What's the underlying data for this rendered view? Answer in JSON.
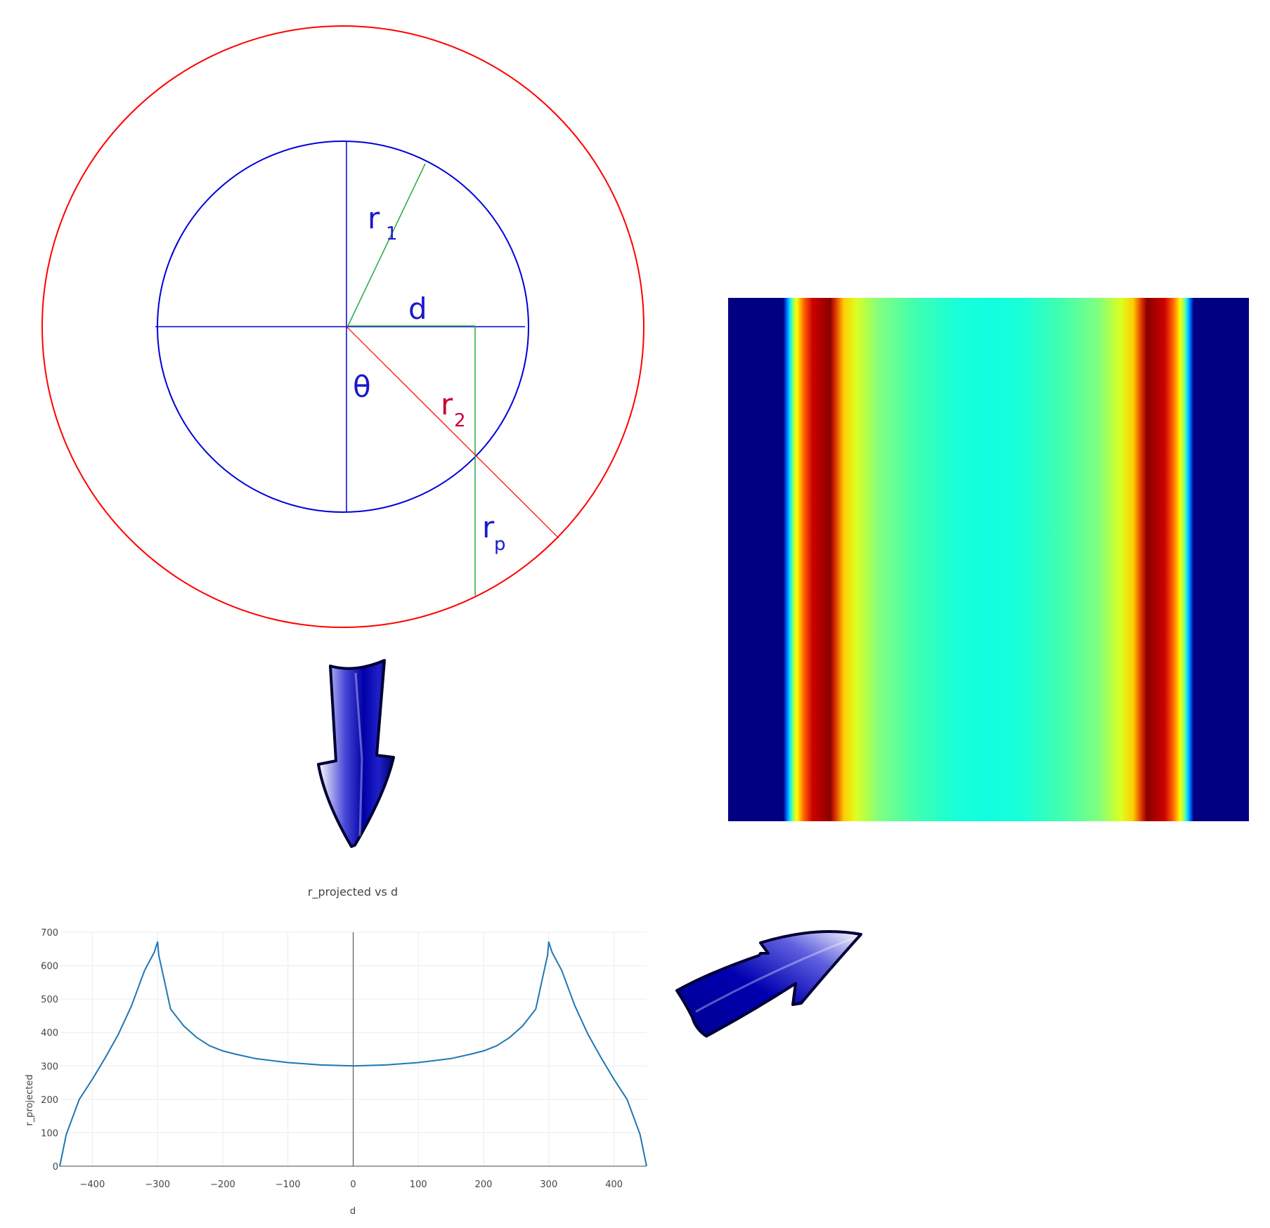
{
  "diagram": {
    "labels": {
      "r1_main": "r",
      "r1_sub": "1",
      "d": "d",
      "theta": "θ",
      "r2_main": "r",
      "r2_sub": "2",
      "rp_main": "r",
      "rp_sub": "p"
    },
    "colors": {
      "outer_circle": "#ff0000",
      "inner_circle": "#0000dd",
      "helper_lines": "#22aa44",
      "r2_line": "#ff0000",
      "label_blue": "#1a1acc",
      "label_red": "#cc0033"
    }
  },
  "colormap": {
    "name": "jet",
    "background": "#000080"
  },
  "arrows": {
    "down_arrow": "arrow-down-icon",
    "up_right_arrow": "arrow-up-right-icon",
    "color": "#1010b0"
  },
  "chart_data": {
    "type": "line",
    "title": "r_projected vs d",
    "xlabel": "d",
    "ylabel": "r_projected",
    "xlim": [
      -450,
      450
    ],
    "ylim": [
      0,
      700
    ],
    "xticks": [
      -400,
      -300,
      -200,
      -100,
      0,
      100,
      200,
      300,
      400
    ],
    "yticks": [
      0,
      100,
      200,
      300,
      400,
      500,
      600,
      700
    ],
    "grid": true,
    "series_color": "#1f77b4",
    "inner_radius": 300,
    "outer_radius": 450,
    "series": [
      {
        "x": [
          -450,
          -440,
          -420,
          -400,
          -380,
          -360,
          -340,
          -320,
          -305,
          -300,
          -298,
          -290,
          -280,
          -260,
          -240,
          -220,
          -200,
          -180,
          -150,
          -100,
          -50,
          0,
          50,
          100,
          150,
          180,
          200,
          220,
          240,
          260,
          280,
          290,
          298,
          300,
          305,
          320,
          340,
          360,
          380,
          400,
          420,
          440,
          450
        ],
        "y": [
          0,
          95,
          200,
          260,
          325,
          395,
          480,
          585,
          640,
          671,
          630,
          560,
          470,
          420,
          385,
          360,
          345,
          335,
          322,
          310,
          303,
          300,
          303,
          310,
          322,
          335,
          345,
          360,
          385,
          420,
          470,
          560,
          630,
          671,
          640,
          585,
          480,
          395,
          325,
          260,
          200,
          95,
          0
        ]
      }
    ]
  }
}
